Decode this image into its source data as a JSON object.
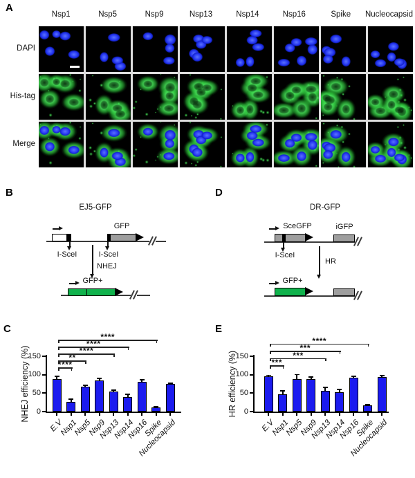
{
  "figure": {
    "panel_a": {
      "label": "A",
      "columns": [
        "Nsp1",
        "Nsp5",
        "Nsp9",
        "Nsp13",
        "Nsp14",
        "Nsp16",
        "Spike",
        "Nucleocapsid"
      ],
      "rows": [
        "DAPI",
        "His-tag",
        "Merge"
      ]
    },
    "panel_b": {
      "label": "B",
      "title": "EJ5-GFP",
      "gfp": "GFP",
      "isce": "I-SceI",
      "pathway": "NHEJ",
      "product": "GFP+"
    },
    "panel_d": {
      "label": "D",
      "title": "DR-GFP",
      "scegfp": "SceGFP",
      "igfp": "iGFP",
      "isce": "I-SceI",
      "pathway": "HR",
      "product": "GFP+"
    },
    "panel_c": {
      "label": "C"
    },
    "panel_e": {
      "label": "E"
    }
  },
  "colors": {
    "bar_blue": "#1b1bef",
    "diagram_green": "#10b24c",
    "diagram_gray": "#9e9e9e",
    "nuclei_blue": "#2739f2",
    "his_green": "#2ecc44"
  },
  "chart_data": [
    {
      "id": "nhej",
      "type": "bar",
      "title": "",
      "ylabel": "NHEJ efficiency (%)",
      "xlabel": "",
      "categories": [
        "E.V",
        "Nsp1",
        "Nsp5",
        "Nsp9",
        "Nsp13",
        "Nsp14",
        "Nsp16",
        "Spike",
        "Nucleocapsid"
      ],
      "values": [
        88,
        27,
        67,
        84,
        55,
        40,
        81,
        11,
        75
      ],
      "errors": [
        10,
        9,
        6,
        8,
        5,
        9,
        7,
        4,
        4
      ],
      "yticks": [
        0,
        50,
        100,
        150
      ],
      "ylim": [
        0,
        150
      ],
      "grid": false,
      "bar_color": "#1b1bef",
      "significance": [
        {
          "from": "E.V",
          "to": "Nsp1",
          "label": "****"
        },
        {
          "from": "E.V",
          "to": "Nsp5",
          "label": "**"
        },
        {
          "from": "E.V",
          "to": "Nsp13",
          "label": "****"
        },
        {
          "from": "E.V",
          "to": "Nsp14",
          "label": "****"
        },
        {
          "from": "E.V",
          "to": "Spike",
          "label": "****"
        }
      ]
    },
    {
      "id": "hr",
      "type": "bar",
      "title": "",
      "ylabel": "HR efficiency (%)",
      "xlabel": "",
      "categories": [
        "E.V",
        "Nsp1",
        "Nsp5",
        "Nsp9",
        "Nsp13",
        "Nsp14",
        "Nsp16",
        "Spike",
        "Nucleocapsid"
      ],
      "values": [
        96,
        46,
        89,
        89,
        56,
        52,
        91,
        17,
        94
      ],
      "errors": [
        4,
        12,
        13,
        6,
        12,
        10,
        6,
        4,
        5
      ],
      "yticks": [
        0,
        50,
        100,
        150
      ],
      "ylim": [
        0,
        150
      ],
      "grid": false,
      "bar_color": "#1b1bef",
      "significance": [
        {
          "from": "E.V",
          "to": "Nsp1",
          "label": "***"
        },
        {
          "from": "E.V",
          "to": "Nsp13",
          "label": "***"
        },
        {
          "from": "E.V",
          "to": "Nsp14",
          "label": "***"
        },
        {
          "from": "E.V",
          "to": "Spike",
          "label": "****"
        }
      ]
    }
  ]
}
